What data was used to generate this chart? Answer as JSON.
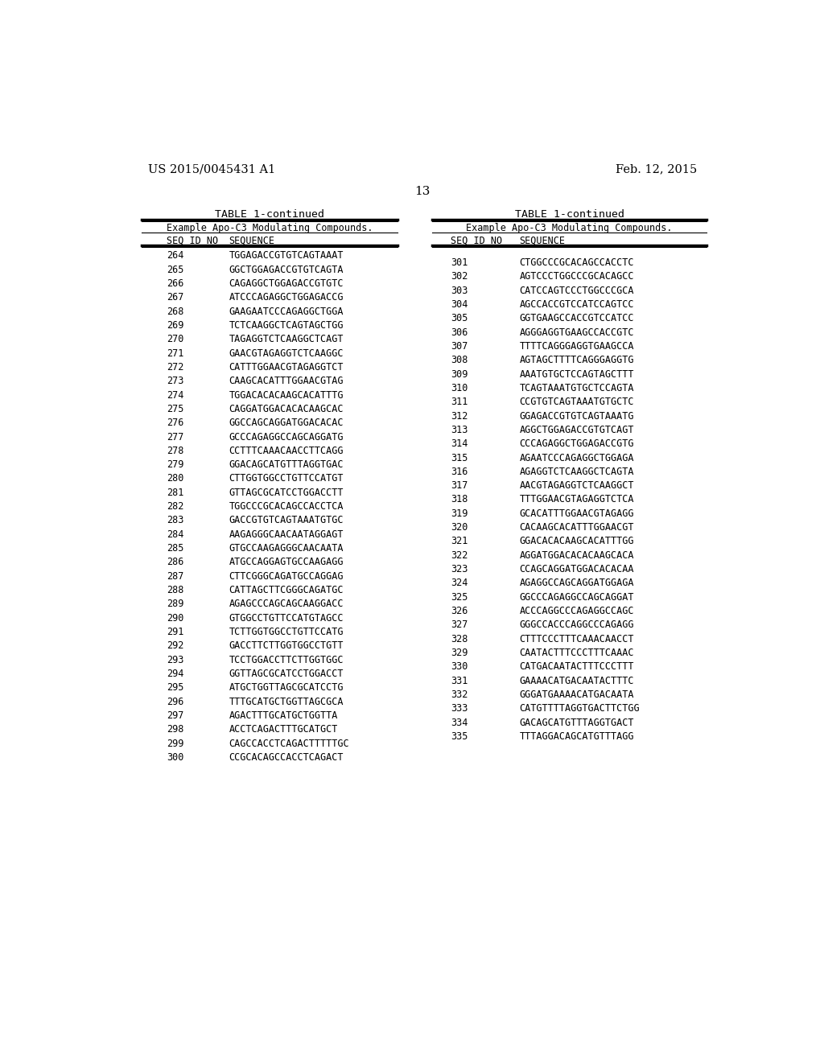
{
  "header_left": "US 2015/0045431 A1",
  "header_right": "Feb. 12, 2015",
  "page_number": "13",
  "table_title": "TABLE 1-continued",
  "table_subtitle": "Example Apo-C3 Modulating Compounds.",
  "col1_header": "SEQ ID NO",
  "col2_header": "SEQUENCE",
  "background_color": "#ffffff",
  "text_color": "#000000",
  "left_data": [
    [
      "264",
      "TGGAGACCGTGTCAGTAAAT"
    ],
    [
      "265",
      "GGCTGGAGACCGTGTCAGTA"
    ],
    [
      "266",
      "CAGAGGCTGGAGACCGTGTC"
    ],
    [
      "267",
      "ATCCCAGAGGCTGGAGACCG"
    ],
    [
      "268",
      "GAAGAATCCCAGAGGCTGGA"
    ],
    [
      "269",
      "TCTCAAGGCTCAGTAGCTGG"
    ],
    [
      "270",
      "TAGAGGTCTCAAGGCTCAGT"
    ],
    [
      "271",
      "GAACGTAGAGGTCTCAAGGC"
    ],
    [
      "272",
      "CATTTGGAACGTAGAGGTCT"
    ],
    [
      "273",
      "CAAGCACATTTGGAACGTAG"
    ],
    [
      "274",
      "TGGACACACAAGCACATTTG"
    ],
    [
      "275",
      "CAGGATGGACACACAAGCAC"
    ],
    [
      "276",
      "GGCCAGCAGGATGGACACAC"
    ],
    [
      "277",
      "GCCCAGAGGCCAGCAGGATG"
    ],
    [
      "278",
      "CCTTTCAAACAACCTTCAGG"
    ],
    [
      "279",
      "GGACAGCATGTTTAGGTGAC"
    ],
    [
      "280",
      "CTTGGTGGCCTGTTCCATGT"
    ],
    [
      "281",
      "GTTAGCGCATCCTGGACCTT"
    ],
    [
      "282",
      "TGGCCCGCACAGCCACCTCA"
    ],
    [
      "283",
      "GACCGTGTCAGTAAATGTGC"
    ],
    [
      "284",
      "AAGAGGGCAACAATAGGAGT"
    ],
    [
      "285",
      "GTGCCAAGAGGGCAACAATA"
    ],
    [
      "286",
      "ATGCCAGGAGTGCCAAGAGG"
    ],
    [
      "287",
      "CTTCGGGCAGATGCCAGGAG"
    ],
    [
      "288",
      "CATTAGCTTCGGGCAGATGC"
    ],
    [
      "289",
      "AGAGCCCAGCAGCAAGGACC"
    ],
    [
      "290",
      "GTGGCCTGTTCCATGTAGCC"
    ],
    [
      "291",
      "TCTTGGTGGCCTGTTCCATG"
    ],
    [
      "292",
      "GACCTTCTTGGTGGCCTGTT"
    ],
    [
      "293",
      "TCCTGGACCTTCTTGGTGGC"
    ],
    [
      "294",
      "GGTTAGCGCATCCTGGACCT"
    ],
    [
      "295",
      "ATGCTGGTTAGCGCATCCTG"
    ],
    [
      "296",
      "TTTGCATGCTGGTTAGCGCA"
    ],
    [
      "297",
      "AGACTTTGCATGCTGGTTA"
    ],
    [
      "298",
      "ACCTCAGACTTTGCATGCT"
    ],
    [
      "299",
      "CAGCCACCTCAGACTTTTTGC"
    ],
    [
      "300",
      "CCGCACAGCCACCTCAGACT"
    ]
  ],
  "right_data": [
    [
      "301",
      "CTGGCCCGCACAGCCACCTC"
    ],
    [
      "302",
      "AGTCCCTGGCCCGCACAGCC"
    ],
    [
      "303",
      "CATCCAGTCCCTGGCCCGCA"
    ],
    [
      "304",
      "AGCCACCGTCCATCCAGTCC"
    ],
    [
      "305",
      "GGTGAAGCCACCGTCCATCC"
    ],
    [
      "306",
      "AGGGAGGTGAAGCCACCGTC"
    ],
    [
      "307",
      "TTTTCAGGGAGGTGAAGCCA"
    ],
    [
      "308",
      "AGTAGCTTTTCAGGGAGGTG"
    ],
    [
      "309",
      "AAATGTGCTCCAGTAGCTTT"
    ],
    [
      "310",
      "TCAGTAAATGTGCTCCAGTA"
    ],
    [
      "311",
      "CCGTGTCAGTAAATGTGCTC"
    ],
    [
      "312",
      "GGAGACCGTGTCAGTAAATG"
    ],
    [
      "313",
      "AGGCTGGAGACCGTGTCAGT"
    ],
    [
      "314",
      "CCCAGAGGCTGGAGACCGTG"
    ],
    [
      "315",
      "AGAATCCCAGAGGCTGGAGA"
    ],
    [
      "316",
      "AGAGGTCTCAAGGCTCAGTA"
    ],
    [
      "317",
      "AACGTAGAGGTCTCAAGGCT"
    ],
    [
      "318",
      "TTTGGAACGTAGAGGTCTCA"
    ],
    [
      "319",
      "GCACATTTGGAACGTAGAGG"
    ],
    [
      "320",
      "CACAAGCACATTTGGAACGT"
    ],
    [
      "321",
      "GGACACACAAGCACATTTGG"
    ],
    [
      "322",
      "AGGATGGACACACAAGCACA"
    ],
    [
      "323",
      "CCAGCAGGATGGACACACAA"
    ],
    [
      "324",
      "AGAGGCCAGCAGGATGGAGA"
    ],
    [
      "325",
      "GGCCCAGAGGCCAGCAGGAT"
    ],
    [
      "326",
      "ACCCAGGCCCAGAGGCCAGC"
    ],
    [
      "327",
      "GGGCCACCCAGGCCCAGAGG"
    ],
    [
      "328",
      "CTTTCCCTTTCAAACAACCT"
    ],
    [
      "329",
      "CAATACTTTCCCTTTCAAAC"
    ],
    [
      "330",
      "CATGACAATACTTTCCCTTT"
    ],
    [
      "331",
      "GAAAACATGACAATACTTTC"
    ],
    [
      "332",
      "GGGATGAAAACATGACAATA"
    ],
    [
      "333",
      "CATGTTTTAGGTGACTTCTGG"
    ],
    [
      "334",
      "GACAGCATGTTTAGGTGACT"
    ],
    [
      "335",
      "TTTAGGACAGCATGTTTAGG"
    ]
  ]
}
